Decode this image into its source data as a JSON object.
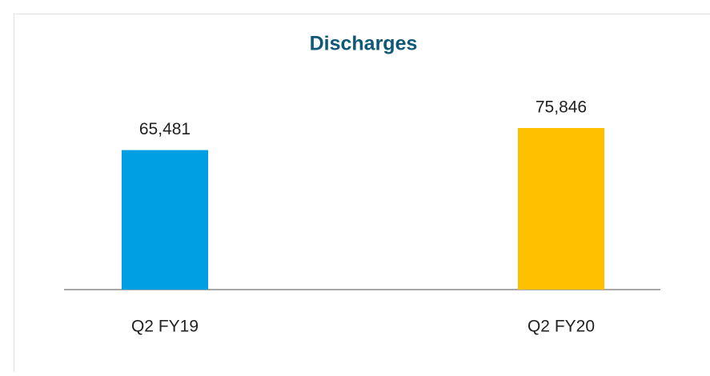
{
  "chart_data": {
    "type": "bar",
    "title": "Discharges",
    "categories": [
      "Q2 FY19",
      "Q2 FY20"
    ],
    "values": [
      65481,
      75846
    ],
    "value_labels": [
      "65,481",
      "75,846"
    ],
    "colors": [
      "#009fe3",
      "#ffc000"
    ]
  }
}
